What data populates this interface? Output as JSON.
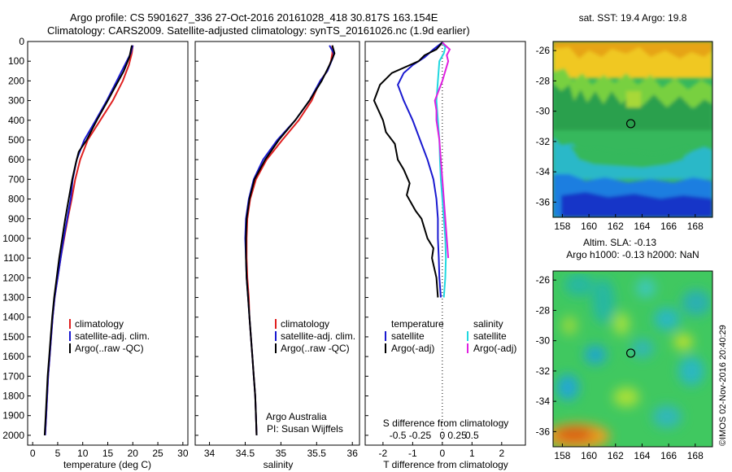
{
  "header": {
    "line1": "Argo profile: CS 5901627_336 27-Oct-2016 20161028_418 30.817S 163.154E",
    "line2": "Climatology: CARS2009. Satellite-adjusted climatology: synTS_20161026.nc (1.9d earlier)"
  },
  "credit": {
    "line1": "Argo Australia",
    "line2": "PI: Susan Wijffels"
  },
  "copyright": "©IMOS 02-Nov-2016 20:40:29",
  "colors": {
    "climatology": "#e02020",
    "satellite": "#1a1ad0",
    "argo": "#000000",
    "salinity_satellite": "#20d8e0",
    "salinity_argo": "#e020e0"
  },
  "chart_data": [
    {
      "id": "temperature",
      "type": "line",
      "xlabel": "temperature (deg C)",
      "xlim": [
        -1,
        31
      ],
      "xticks": [
        0,
        5,
        10,
        15,
        20,
        25,
        30
      ],
      "ylim": [
        0,
        2050
      ],
      "yticks": [
        0,
        100,
        200,
        300,
        400,
        500,
        600,
        700,
        800,
        900,
        1000,
        1100,
        1200,
        1300,
        1400,
        1500,
        1600,
        1700,
        1800,
        1900,
        2000
      ],
      "legend": [
        "climatology",
        "satellite-adj. clim.",
        "Argo(..raw -QC)"
      ],
      "series": [
        {
          "name": "climatology",
          "color": "#e02020",
          "points": [
            [
              20.0,
              20
            ],
            [
              19.8,
              60
            ],
            [
              19.2,
              120
            ],
            [
              18.0,
              200
            ],
            [
              16.0,
              300
            ],
            [
              13.5,
              400
            ],
            [
              11.0,
              500
            ],
            [
              9.5,
              600
            ],
            [
              8.5,
              700
            ],
            [
              7.8,
              800
            ],
            [
              7.0,
              900
            ],
            [
              6.3,
              1000
            ],
            [
              5.6,
              1100
            ],
            [
              5.0,
              1200
            ],
            [
              4.4,
              1300
            ],
            [
              4.0,
              1400
            ],
            [
              3.7,
              1500
            ],
            [
              3.4,
              1600
            ],
            [
              3.1,
              1700
            ],
            [
              2.9,
              1800
            ],
            [
              2.7,
              1900
            ],
            [
              2.5,
              2000
            ]
          ]
        },
        {
          "name": "satellite-adj. clim.",
          "color": "#1a1ad0",
          "points": [
            [
              20.0,
              20
            ],
            [
              19.6,
              60
            ],
            [
              18.4,
              120
            ],
            [
              16.8,
              200
            ],
            [
              14.8,
              300
            ],
            [
              12.6,
              400
            ],
            [
              10.3,
              500
            ],
            [
              8.8,
              600
            ],
            [
              8.0,
              700
            ],
            [
              7.6,
              800
            ],
            [
              6.9,
              900
            ],
            [
              6.2,
              1000
            ],
            [
              5.6,
              1100
            ],
            [
              5.0,
              1200
            ],
            [
              4.4,
              1300
            ],
            [
              4.0,
              1400
            ],
            [
              3.7,
              1500
            ],
            [
              3.4,
              1600
            ],
            [
              3.1,
              1700
            ],
            [
              2.9,
              1800
            ],
            [
              2.7,
              1900
            ],
            [
              2.5,
              2000
            ]
          ]
        },
        {
          "name": "Argo(..raw -QC)",
          "color": "#000000",
          "points": [
            [
              19.8,
              20
            ],
            [
              19.3,
              80
            ],
            [
              18.2,
              150
            ],
            [
              16.7,
              220
            ],
            [
              15.0,
              300
            ],
            [
              12.8,
              400
            ],
            [
              10.8,
              500
            ],
            [
              9.2,
              560
            ],
            [
              8.6,
              620
            ],
            [
              7.9,
              700
            ],
            [
              7.2,
              800
            ],
            [
              6.5,
              900
            ],
            [
              5.9,
              1000
            ],
            [
              5.3,
              1100
            ],
            [
              4.8,
              1200
            ],
            [
              4.3,
              1300
            ],
            [
              3.9,
              1400
            ],
            [
              3.6,
              1500
            ],
            [
              3.3,
              1600
            ],
            [
              3.0,
              1700
            ],
            [
              2.8,
              1800
            ],
            [
              2.6,
              1900
            ],
            [
              2.4,
              2000
            ]
          ]
        }
      ]
    },
    {
      "id": "salinity",
      "type": "line",
      "xlabel": "salinity",
      "xlim": [
        33.8,
        36.1
      ],
      "xticks": [
        34,
        34.5,
        35,
        35.5,
        36
      ],
      "ylim": [
        0,
        2050
      ],
      "legend": [
        "climatology",
        "satellite-adj. clim.",
        "Argo(..raw -QC)"
      ],
      "series": [
        {
          "name": "climatology",
          "color": "#e02020",
          "points": [
            [
              35.72,
              20
            ],
            [
              35.72,
              60
            ],
            [
              35.7,
              100
            ],
            [
              35.65,
              150
            ],
            [
              35.55,
              200
            ],
            [
              35.43,
              300
            ],
            [
              35.25,
              400
            ],
            [
              35.02,
              500
            ],
            [
              34.8,
              600
            ],
            [
              34.65,
              700
            ],
            [
              34.57,
              800
            ],
            [
              34.53,
              900
            ],
            [
              34.52,
              1000
            ],
            [
              34.52,
              1100
            ],
            [
              34.53,
              1200
            ],
            [
              34.55,
              1300
            ],
            [
              34.56,
              1400
            ],
            [
              34.58,
              1500
            ],
            [
              34.6,
              1600
            ],
            [
              34.62,
              1700
            ],
            [
              34.64,
              1800
            ],
            [
              34.65,
              1900
            ],
            [
              34.66,
              2000
            ]
          ]
        },
        {
          "name": "satellite-adj. clim.",
          "color": "#1a1ad0",
          "points": [
            [
              35.68,
              20
            ],
            [
              35.74,
              60
            ],
            [
              35.73,
              80
            ],
            [
              35.65,
              150
            ],
            [
              35.55,
              200
            ],
            [
              35.4,
              300
            ],
            [
              35.2,
              400
            ],
            [
              34.95,
              500
            ],
            [
              34.75,
              600
            ],
            [
              34.62,
              700
            ],
            [
              34.55,
              800
            ],
            [
              34.51,
              900
            ],
            [
              34.5,
              1000
            ],
            [
              34.51,
              1100
            ],
            [
              34.52,
              1200
            ],
            [
              34.54,
              1300
            ],
            [
              34.56,
              1400
            ],
            [
              34.58,
              1500
            ],
            [
              34.6,
              1600
            ],
            [
              34.62,
              1700
            ],
            [
              34.64,
              1800
            ],
            [
              34.65,
              1900
            ],
            [
              34.66,
              2000
            ]
          ]
        },
        {
          "name": "Argo(..raw -QC)",
          "color": "#000000",
          "points": [
            [
              35.72,
              20
            ],
            [
              35.75,
              60
            ],
            [
              35.68,
              120
            ],
            [
              35.57,
              200
            ],
            [
              35.4,
              300
            ],
            [
              35.2,
              400
            ],
            [
              34.97,
              500
            ],
            [
              34.78,
              600
            ],
            [
              34.63,
              700
            ],
            [
              34.56,
              800
            ],
            [
              34.52,
              900
            ],
            [
              34.51,
              1000
            ],
            [
              34.51,
              1100
            ],
            [
              34.52,
              1200
            ],
            [
              34.54,
              1300
            ],
            [
              34.56,
              1400
            ],
            [
              34.58,
              1500
            ],
            [
              34.6,
              1600
            ],
            [
              34.62,
              1700
            ],
            [
              34.64,
              1800
            ],
            [
              34.65,
              1900
            ],
            [
              34.66,
              2000
            ]
          ]
        }
      ]
    },
    {
      "id": "difference",
      "type": "line",
      "xlabel": "T difference from climatology",
      "xlabel_top": "S difference from climatology",
      "xlim": [
        -2.6,
        2.8
      ],
      "xticks": [
        -2,
        -1,
        0,
        1,
        2
      ],
      "top_ticks": [
        [
          "-0.5",
          -1.5
        ],
        [
          "-0.25",
          -0.75
        ],
        [
          "0",
          0
        ],
        [
          "0.25",
          0.5
        ],
        [
          "0.5",
          1.0
        ]
      ],
      "ylim": [
        0,
        2050
      ],
      "legend_titles": [
        "temperature",
        "salinity"
      ],
      "legend": [
        "satellite",
        "Argo(-adj)",
        "satellite",
        "Argo(-adj)"
      ],
      "series": [
        {
          "name": "satellite",
          "group": "temperature",
          "color": "#1a1ad0",
          "points": [
            [
              0,
              5
            ],
            [
              -0.3,
              40
            ],
            [
              -0.6,
              80
            ],
            [
              -1.0,
              120
            ],
            [
              -1.3,
              160
            ],
            [
              -1.5,
              220
            ],
            [
              -1.3,
              300
            ],
            [
              -1.0,
              400
            ],
            [
              -0.75,
              500
            ],
            [
              -0.5,
              600
            ],
            [
              -0.3,
              700
            ],
            [
              -0.2,
              800
            ],
            [
              -0.15,
              900
            ],
            [
              -0.15,
              1000
            ],
            [
              -0.12,
              1100
            ],
            [
              -0.1,
              1200
            ],
            [
              -0.05,
              1300
            ]
          ]
        },
        {
          "name": "Argo(-adj)",
          "group": "temperature",
          "color": "#000000",
          "points": [
            [
              0,
              5
            ],
            [
              -0.2,
              40
            ],
            [
              -0.6,
              70
            ],
            [
              -0.8,
              100
            ],
            [
              -1.7,
              160
            ],
            [
              -2.1,
              220
            ],
            [
              -2.3,
              300
            ],
            [
              -2.0,
              400
            ],
            [
              -1.9,
              460
            ],
            [
              -1.6,
              520
            ],
            [
              -1.5,
              600
            ],
            [
              -1.3,
              650
            ],
            [
              -1.1,
              720
            ],
            [
              -1.2,
              780
            ],
            [
              -0.9,
              860
            ],
            [
              -0.7,
              900
            ],
            [
              -0.5,
              1000
            ],
            [
              -0.3,
              1050
            ],
            [
              -0.35,
              1100
            ],
            [
              -0.2,
              1200
            ],
            [
              -0.15,
              1300
            ]
          ]
        },
        {
          "name": "satellite",
          "group": "salinity",
          "color": "#20d8e0",
          "points": [
            [
              0,
              5
            ],
            [
              0.1,
              30
            ],
            [
              0.05,
              60
            ],
            [
              -0.1,
              100
            ],
            [
              -0.15,
              200
            ],
            [
              -0.2,
              300
            ],
            [
              -0.15,
              400
            ],
            [
              -0.1,
              500
            ],
            [
              -0.08,
              600
            ],
            [
              -0.05,
              700
            ],
            [
              0,
              800
            ],
            [
              0.05,
              900
            ],
            [
              0.1,
              1000
            ],
            [
              0.12,
              1100
            ],
            [
              0.1,
              1200
            ],
            [
              0.05,
              1300
            ]
          ]
        },
        {
          "name": "Argo(-adj)",
          "group": "salinity",
          "color": "#e020e0",
          "points": [
            [
              0,
              5
            ],
            [
              0.1,
              20
            ],
            [
              0.25,
              40
            ],
            [
              0.15,
              70
            ],
            [
              0.2,
              100
            ],
            [
              0.1,
              150
            ],
            [
              0.0,
              200
            ],
            [
              -0.25,
              300
            ],
            [
              -0.2,
              350
            ],
            [
              -0.2,
              400
            ],
            [
              -0.1,
              500
            ],
            [
              -0.05,
              600
            ],
            [
              0,
              700
            ],
            [
              0.05,
              800
            ],
            [
              0.1,
              900
            ],
            [
              0.15,
              1000
            ],
            [
              0.2,
              1100
            ]
          ]
        }
      ]
    },
    {
      "id": "sst_map",
      "type": "heatmap",
      "title": "sat. SST: 19.4 Argo: 19.8",
      "xticks": [
        158,
        160,
        162,
        164,
        166,
        168
      ],
      "yticks": [
        -26,
        -28,
        -30,
        -32,
        -34,
        -36
      ],
      "xlim": [
        157.3,
        169.3
      ],
      "ylim": [
        -37,
        -25.4
      ],
      "marker": [
        163.15,
        -30.82
      ]
    },
    {
      "id": "sla_map",
      "type": "heatmap",
      "title": "Altim. SLA: -0.13",
      "subtitle": "Argo h1000: -0.13 h2000: NaN",
      "xticks": [
        158,
        160,
        162,
        164,
        166,
        168
      ],
      "yticks": [
        -26,
        -28,
        -30,
        -32,
        -34,
        -36
      ],
      "xlim": [
        157.3,
        169.3
      ],
      "ylim": [
        -37,
        -25.4
      ],
      "marker": [
        163.15,
        -30.82
      ]
    }
  ]
}
